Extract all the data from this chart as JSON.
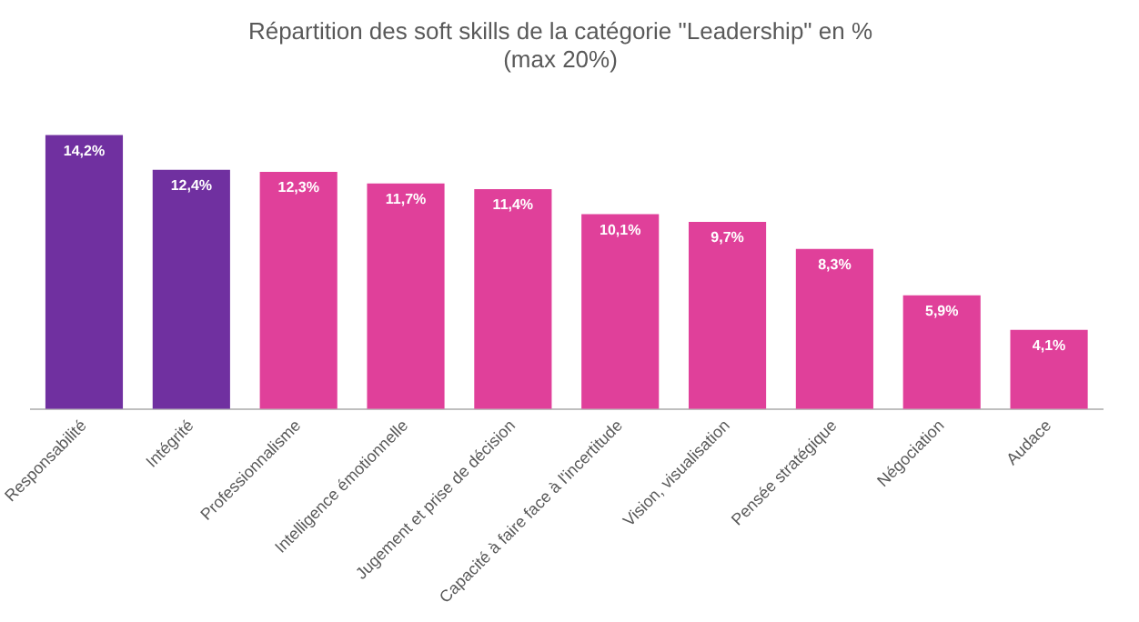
{
  "chart_data": {
    "type": "bar",
    "title": "Répartition des soft skills de la catégorie \"Leadership\" en %",
    "subtitle": "(max 20%)",
    "categories": [
      "Responsabilité",
      "Intégrité",
      "Professionnalisme",
      "Intelligence émotionnelle",
      "Jugement et prise de décision",
      "Capacité à faire face à l'incertitude",
      "Vision, visualisation",
      "Pensée stratégique",
      "Négociation",
      "Audace"
    ],
    "values": [
      14.2,
      12.4,
      12.3,
      11.7,
      11.4,
      10.1,
      9.7,
      8.3,
      5.9,
      4.1
    ],
    "colors": [
      "#7030a0",
      "#7030a0",
      "#e0409a",
      "#e0409a",
      "#e0409a",
      "#e0409a",
      "#e0409a",
      "#e0409a",
      "#e0409a",
      "#e0409a"
    ],
    "value_labels": [
      "14,2%",
      "12,4%",
      "12,3%",
      "11,7%",
      "11,4%",
      "10,1%",
      "9,7%",
      "8,3%",
      "5,9%",
      "4,1%"
    ],
    "grid": false,
    "legend": false
  }
}
